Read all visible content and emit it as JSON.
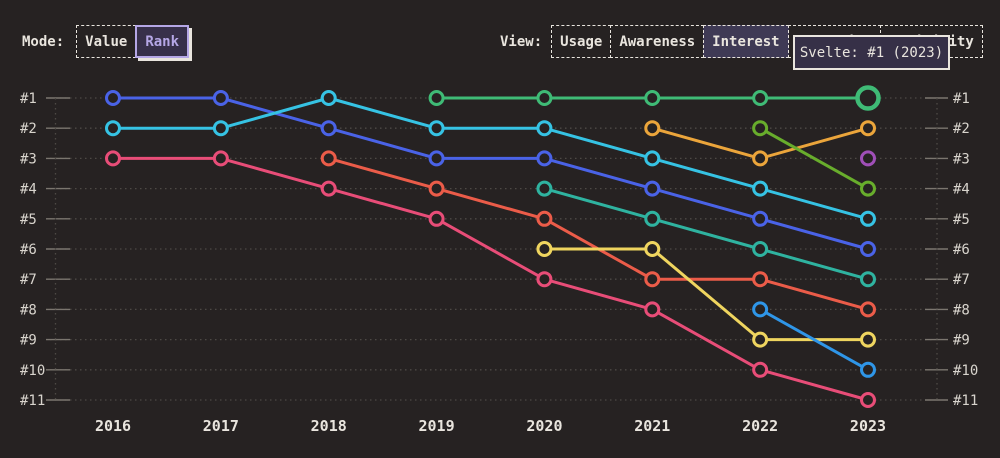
{
  "mode": {
    "label": "Mode:",
    "options": [
      {
        "label": "Value",
        "selected": false
      },
      {
        "label": "Rank",
        "selected": true
      }
    ]
  },
  "view": {
    "label": "View:",
    "options": [
      {
        "label": "Usage",
        "selected": false
      },
      {
        "label": "Awareness",
        "selected": false
      },
      {
        "label": "Interest",
        "selected": true
      },
      {
        "label": "Retention",
        "selected": false
      },
      {
        "label": "Positivity",
        "selected": false
      }
    ]
  },
  "tooltip": {
    "text": "Svelte: #1 (2023)"
  },
  "theme": {
    "background": "#262222",
    "cream": "#e9e5de",
    "axis_label": "#d8d4cd",
    "grid": "#4e4a46",
    "tick": "#7b766f",
    "purple_accent": "#b5a7e6",
    "purple_bg": "#37304a",
    "view_selected_bg": "#3f3a55",
    "tooltip_bg": "#363047"
  },
  "chart_data": {
    "type": "line",
    "subtype": "bump-rank-chart",
    "x": [
      2016,
      2017,
      2018,
      2019,
      2020,
      2021,
      2022,
      2023
    ],
    "x_tick_labels": [
      "2016",
      "2017",
      "2018",
      "2019",
      "2020",
      "2021",
      "2022",
      "2023"
    ],
    "y_tick_labels": [
      "#1",
      "#2",
      "#3",
      "#4",
      "#5",
      "#6",
      "#7",
      "#8",
      "#9",
      "#10",
      "#11"
    ],
    "y_axis": "rank (1 = best, shown top)",
    "ylim": [
      1,
      11
    ],
    "grid": "dotted horizontal rank lines, labels on both sides",
    "legend_position": "none",
    "highlight": {
      "series": "svelte-green",
      "year": 2023,
      "rank": 1,
      "tooltip": "Svelte: #1 (2023)"
    },
    "series": [
      {
        "id": "royal-blue",
        "color": "#4a63e7",
        "points": [
          [
            2016,
            1
          ],
          [
            2017,
            1
          ],
          [
            2018,
            2
          ],
          [
            2019,
            3
          ],
          [
            2020,
            3
          ],
          [
            2021,
            4
          ],
          [
            2022,
            5
          ],
          [
            2023,
            6
          ]
        ]
      },
      {
        "id": "cyan",
        "color": "#36c3e4",
        "points": [
          [
            2016,
            2
          ],
          [
            2017,
            2
          ],
          [
            2018,
            1
          ],
          [
            2019,
            2
          ],
          [
            2020,
            2
          ],
          [
            2021,
            3
          ],
          [
            2022,
            4
          ],
          [
            2023,
            5
          ]
        ]
      },
      {
        "id": "pink",
        "color": "#e84d78",
        "points": [
          [
            2016,
            3
          ],
          [
            2017,
            3
          ],
          [
            2018,
            4
          ],
          [
            2019,
            5
          ],
          [
            2020,
            7
          ],
          [
            2021,
            8
          ],
          [
            2022,
            10
          ],
          [
            2023,
            11
          ]
        ]
      },
      {
        "id": "salmon",
        "color": "#eb5c49",
        "points": [
          [
            2018,
            3
          ],
          [
            2019,
            4
          ],
          [
            2020,
            5
          ],
          [
            2021,
            7
          ],
          [
            2022,
            7
          ],
          [
            2023,
            8
          ]
        ]
      },
      {
        "id": "svelte-green",
        "color": "#3fbb76",
        "points": [
          [
            2019,
            1
          ],
          [
            2020,
            1
          ],
          [
            2021,
            1
          ],
          [
            2022,
            1
          ],
          [
            2023,
            1
          ]
        ],
        "highlight_year": 2023
      },
      {
        "id": "teal",
        "color": "#2fb3a0",
        "points": [
          [
            2020,
            4
          ],
          [
            2021,
            5
          ],
          [
            2022,
            6
          ],
          [
            2023,
            7
          ]
        ]
      },
      {
        "id": "yellow",
        "color": "#efd55f",
        "points": [
          [
            2020,
            6
          ],
          [
            2021,
            6
          ],
          [
            2022,
            9
          ],
          [
            2023,
            9
          ]
        ]
      },
      {
        "id": "orange",
        "color": "#eba53b",
        "points": [
          [
            2021,
            2
          ],
          [
            2022,
            3
          ],
          [
            2023,
            2
          ]
        ]
      },
      {
        "id": "grass-green",
        "color": "#68ad2c",
        "points": [
          [
            2022,
            2
          ],
          [
            2023,
            4
          ]
        ]
      },
      {
        "id": "dodger-blue",
        "color": "#2f96e8",
        "points": [
          [
            2022,
            8
          ],
          [
            2023,
            10
          ]
        ]
      },
      {
        "id": "purple",
        "color": "#a04fb8",
        "points": [
          [
            2023,
            3
          ]
        ]
      }
    ]
  }
}
